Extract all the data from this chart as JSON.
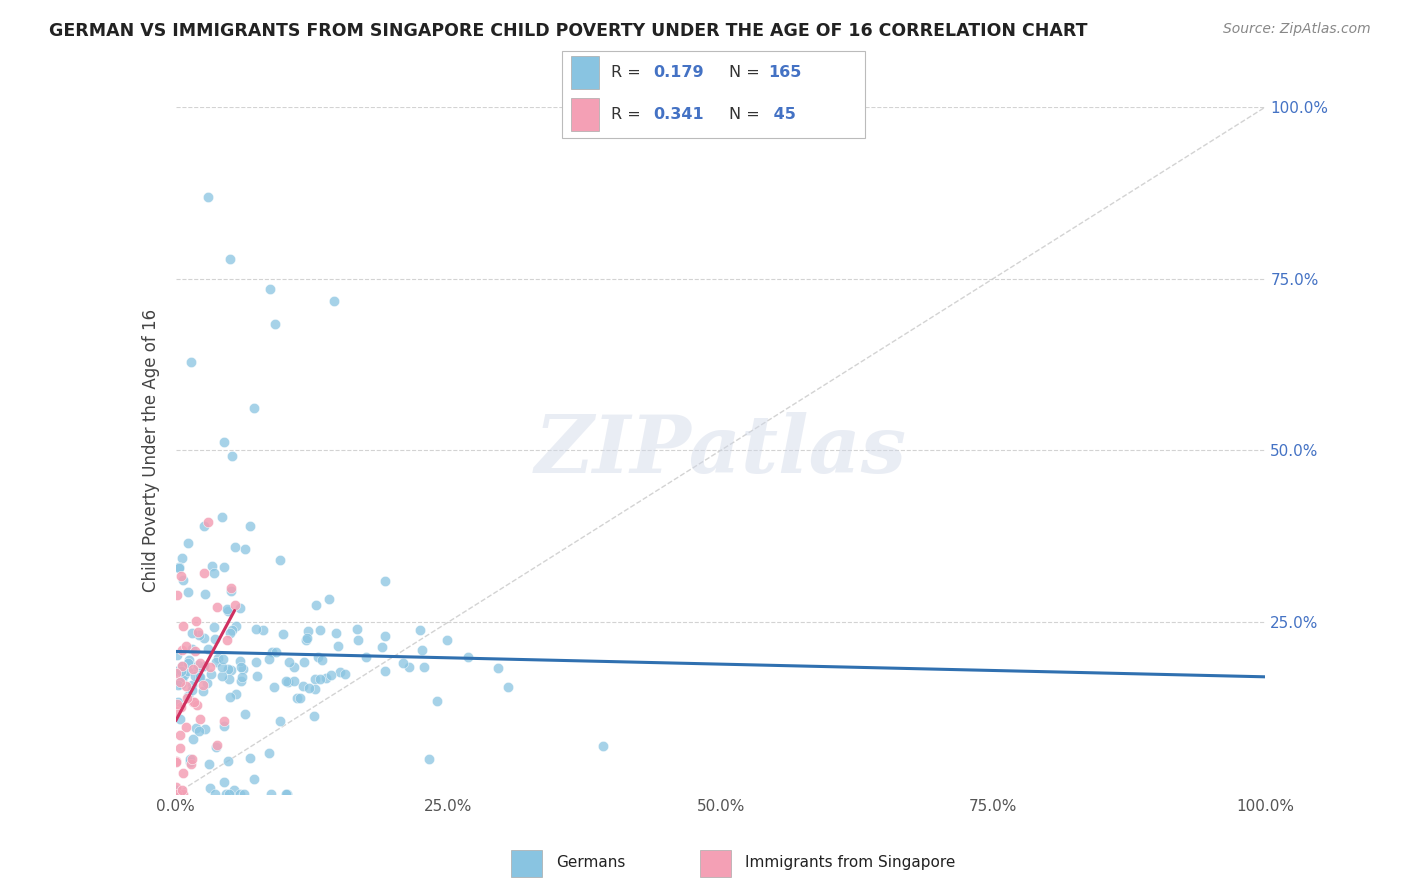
{
  "title": "GERMAN VS IMMIGRANTS FROM SINGAPORE CHILD POVERTY UNDER THE AGE OF 16 CORRELATION CHART",
  "source_text": "Source: ZipAtlas.com",
  "ylabel": "Child Poverty Under the Age of 16",
  "watermark": "ZIPatlas",
  "legend_labels": [
    "Germans",
    "Immigrants from Singapore"
  ],
  "R_german": 0.179,
  "N_german": 165,
  "R_singapore": 0.341,
  "N_singapore": 45,
  "blue_color": "#89c4e1",
  "pink_color": "#f4a0b5",
  "blue_line_color": "#3070b0",
  "pink_line_color": "#d03060",
  "background_color": "#ffffff",
  "xlim": [
    0.0,
    1.0
  ],
  "ylim": [
    0.0,
    1.0
  ],
  "x_tick_positions": [
    0.0,
    0.25,
    0.5,
    0.75,
    1.0
  ],
  "x_tick_labels": [
    "0.0%",
    "25.0%",
    "50.0%",
    "75.0%",
    "100.0%"
  ],
  "y_tick_positions": [
    0.25,
    0.5,
    0.75,
    1.0
  ],
  "y_tick_labels": [
    "25.0%",
    "50.0%",
    "75.0%",
    "100.0%"
  ]
}
